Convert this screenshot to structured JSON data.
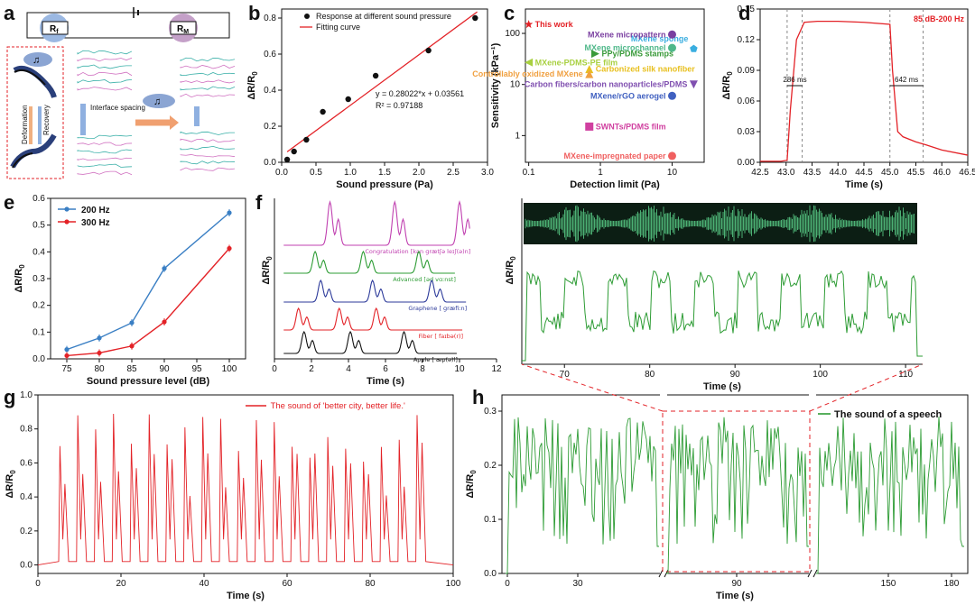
{
  "colors": {
    "red": "#e32227",
    "green": "#2e9c35",
    "blue": "#3a7fc4",
    "black": "#111111",
    "magenta": "#c040b0",
    "navy": "#2c3a9a"
  },
  "panel_labels": [
    "a",
    "b",
    "c",
    "d",
    "e",
    "f",
    "g",
    "h"
  ],
  "schematic": {
    "rf_label": "R",
    "rf_sub": "f",
    "rm_label": "R",
    "rm_sub": "M",
    "deformation": "Deformation",
    "recovery": "Recovery",
    "interface_spacing": "Interface spacing"
  },
  "chart_data": [
    {
      "id": "b",
      "type": "scatter",
      "title": "",
      "xlabel": "Sound pressure (Pa)",
      "ylabel": "ΔR/R0",
      "xlim": [
        0,
        3.0
      ],
      "ylim": [
        0,
        0.85
      ],
      "xticks": [
        "0.0",
        "0.5",
        "1.0",
        "1.5",
        "2.0",
        "2.5",
        "3.0"
      ],
      "yticks": [
        "0.0",
        "0.2",
        "0.4",
        "0.6",
        "0.8"
      ],
      "points": {
        "x": [
          0.08,
          0.18,
          0.36,
          0.6,
          0.97,
          1.37,
          2.14,
          2.82
        ],
        "y": [
          0.015,
          0.06,
          0.125,
          0.28,
          0.35,
          0.48,
          0.62,
          0.8
        ]
      },
      "fit": {
        "slope": 0.28022,
        "intercept": 0.03561,
        "x_range": [
          0.08,
          2.85
        ]
      },
      "legend": [
        "Response at different sound pressure",
        "Fitting curve"
      ],
      "equation": "y = 0.28022*x + 0.03561",
      "r2": "R² = 0.97188"
    },
    {
      "id": "c",
      "type": "scatter",
      "xlabel": "Detection limit (Pa)",
      "ylabel": "Sensitivity (kPa⁻¹)",
      "xscale": "log",
      "yscale": "log",
      "xlim": [
        0.1,
        30
      ],
      "ylim": [
        0.2,
        300
      ],
      "xticks": [
        "0.1",
        "1",
        "10"
      ],
      "yticks": [
        "1",
        "10",
        "100"
      ],
      "items": [
        {
          "label": "This work",
          "x": 0.1,
          "y": 150,
          "color": "#e32227",
          "marker": "star",
          "label_pos": "right"
        },
        {
          "label": "MXene sponge",
          "x": 20,
          "y": 50,
          "color": "#3aaee0",
          "marker": "pentagon",
          "label_pos": "above"
        },
        {
          "label": "MXene micropattern",
          "x": 10,
          "y": 95,
          "color": "#7a3fa0",
          "marker": "circle",
          "label_pos": "left"
        },
        {
          "label": "MXene microchannel",
          "x": 10,
          "y": 52,
          "color": "#4fb88a",
          "marker": "circle",
          "label_pos": "left"
        },
        {
          "label": "PPy/PDMS stamps",
          "x": 0.85,
          "y": 40,
          "color": "#3a9a3a",
          "marker": "tri-right",
          "label_pos": "right"
        },
        {
          "label": "MXene-PDMS-PE film",
          "x": 0.1,
          "y": 27,
          "color": "#a8d040",
          "marker": "tri-left",
          "label_pos": "right"
        },
        {
          "label": "Carbonized silk nanofiber",
          "x": 0.7,
          "y": 20,
          "color": "#e8c020",
          "marker": "tri-up",
          "label_pos": "right"
        },
        {
          "label": "Controllably oxidized MXene",
          "x": 0.7,
          "y": 16,
          "color": "#f0a040",
          "marker": "tri-up",
          "label_pos": "left"
        },
        {
          "label": "MXene/rGO aerogel",
          "x": 10,
          "y": 6,
          "color": "#4060c0",
          "marker": "circle",
          "label_pos": "left"
        },
        {
          "label": "Carbon fibers/carbon nanoparticles/PDMS",
          "x": 20,
          "y": 10,
          "color": "#8050b0",
          "marker": "tri-down",
          "label_pos": "left"
        },
        {
          "label": "SWNTs/PDMS film",
          "x": 0.7,
          "y": 1.5,
          "color": "#d040a0",
          "marker": "square",
          "label_pos": "right"
        },
        {
          "label": "MXene-impregnated paper",
          "x": 10,
          "y": 0.4,
          "color": "#f06060",
          "marker": "circle",
          "label_pos": "left"
        }
      ]
    },
    {
      "id": "d",
      "type": "line",
      "xlabel": "Time (s)",
      "ylabel": "ΔR/R0",
      "xlim": [
        42.5,
        46.5
      ],
      "ylim": [
        0,
        0.15
      ],
      "xticks": [
        "42.5",
        "43.0",
        "43.5",
        "44.0",
        "44.5",
        "45.0",
        "45.5",
        "46.0",
        "46.5"
      ],
      "yticks": [
        "0.00",
        "0.03",
        "0.06",
        "0.09",
        "0.12",
        "0.15"
      ],
      "legend": "85 dB-200 Hz",
      "series": {
        "x": [
          42.5,
          42.9,
          43.02,
          43.08,
          43.2,
          43.35,
          43.6,
          44.0,
          44.5,
          45.0,
          45.05,
          45.15,
          45.25,
          45.5,
          45.7,
          46.0,
          46.5
        ],
        "y": [
          0.001,
          0.001,
          0.002,
          0.05,
          0.12,
          0.137,
          0.138,
          0.138,
          0.137,
          0.135,
          0.09,
          0.03,
          0.025,
          0.02,
          0.017,
          0.012,
          0.007
        ]
      },
      "annotations": [
        "286 ms",
        "642 ms"
      ],
      "vlines": [
        43.02,
        43.31,
        45.0,
        45.64
      ]
    },
    {
      "id": "e",
      "type": "line",
      "xlabel": "Sound pressure level (dB)",
      "ylabel": "ΔR/R0",
      "xlim": [
        72.5,
        102.5
      ],
      "ylim": [
        0,
        0.6
      ],
      "xticks": [
        "75",
        "80",
        "85",
        "90",
        "95",
        "100"
      ],
      "yticks": [
        "0.0",
        "0.1",
        "0.2",
        "0.3",
        "0.4",
        "0.5",
        "0.6"
      ],
      "categories": [
        75,
        80,
        85,
        90,
        100
      ],
      "series": [
        {
          "name": "200 Hz",
          "color": "#3a7fc4",
          "values": [
            0.035,
            0.078,
            0.135,
            0.338,
            0.546
          ]
        },
        {
          "name": "300 Hz",
          "color": "#e32227",
          "values": [
            0.012,
            0.022,
            0.048,
            0.138,
            0.413
          ]
        }
      ]
    },
    {
      "id": "f_left",
      "type": "line",
      "xlabel": "Time (s)",
      "ylabel": "ΔR/R0",
      "xlim": [
        0,
        12
      ],
      "xticks": [
        "0",
        "2",
        "4",
        "6",
        "8",
        "10",
        "12"
      ],
      "series": [
        {
          "name": "Congratulation [kən ɡrætʃə leɪʃ(ə)n]",
          "color": "#c040b0",
          "peaks": [
            3.0,
            6.5,
            10.0
          ]
        },
        {
          "name": "Advanced [əd vɑːnst]",
          "color": "#2e9c35",
          "peaks": [
            2.2,
            4.8,
            7.8
          ]
        },
        {
          "name": "Graphene [ ɡræfiːn]",
          "color": "#2c3a9a",
          "peaks": [
            2.5,
            5.3,
            8.5
          ]
        },
        {
          "name": "Fiber [ faɪbə(r)]",
          "color": "#e32227",
          "peaks": [
            1.3,
            3.5,
            5.5
          ]
        },
        {
          "name": "Apple [ æp(ə)l]",
          "color": "#111111",
          "peaks": [
            1.6,
            4.1,
            7.0
          ]
        }
      ]
    },
    {
      "id": "f_right",
      "type": "line",
      "xlabel": "Time (s)",
      "ylabel": "ΔR/R0",
      "xlim": [
        65,
        112
      ],
      "xticks": [
        "70",
        "80",
        "90",
        "100",
        "110"
      ]
    },
    {
      "id": "g",
      "type": "line",
      "xlabel": "Time (s)",
      "ylabel": "ΔR/R0",
      "xlim": [
        0,
        100
      ],
      "ylim": [
        -0.05,
        1.0
      ],
      "xticks": [
        "0",
        "20",
        "40",
        "60",
        "80",
        "100"
      ],
      "yticks": [
        "0.0",
        "0.2",
        "0.4",
        "0.6",
        "0.8",
        "1.0"
      ],
      "legend": "The sound of 'better city, better life.'"
    },
    {
      "id": "h",
      "type": "line",
      "xlabel": "Time (s)",
      "ylabel": "ΔR/R0",
      "ylim": [
        0,
        0.33
      ],
      "xticks": [
        "0",
        "30",
        "90",
        "150",
        "180"
      ],
      "yticks": [
        "0.0",
        "0.1",
        "0.2",
        "0.3"
      ],
      "legend": "The sound of a speech"
    }
  ]
}
